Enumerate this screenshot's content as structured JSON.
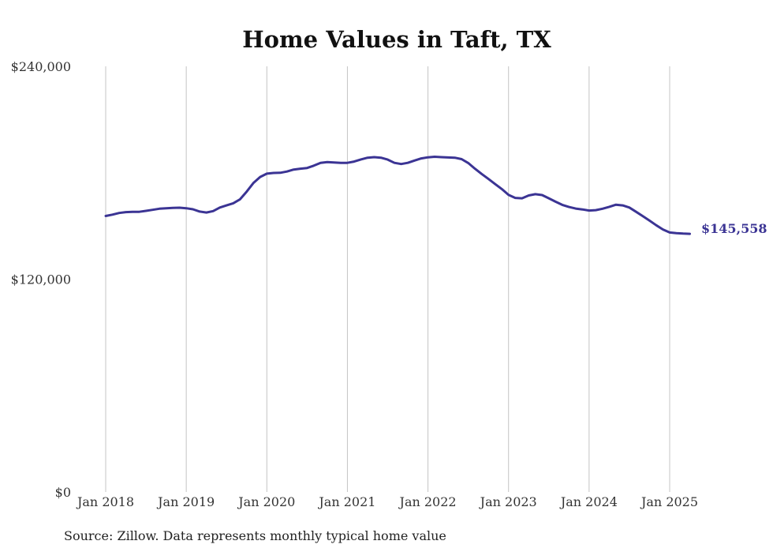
{
  "chart_data": {
    "type": "line",
    "title": "Home Values in Taft, TX",
    "xlabel": "",
    "ylabel": "",
    "ylim": [
      0,
      240000
    ],
    "y_ticks": [
      {
        "value": 0,
        "label": "$0"
      },
      {
        "value": 120000,
        "label": "$120,000"
      },
      {
        "value": 240000,
        "label": "$240,000"
      }
    ],
    "x_ticks": [
      {
        "value": 2018.0,
        "label": "Jan 2018"
      },
      {
        "value": 2019.0,
        "label": "Jan 2019"
      },
      {
        "value": 2020.0,
        "label": "Jan 2020"
      },
      {
        "value": 2021.0,
        "label": "Jan 2021"
      },
      {
        "value": 2022.0,
        "label": "Jan 2022"
      },
      {
        "value": 2023.0,
        "label": "Jan 2023"
      },
      {
        "value": 2024.0,
        "label": "Jan 2024"
      },
      {
        "value": 2025.0,
        "label": "Jan 2025"
      }
    ],
    "grid": "vertical",
    "legend": "none",
    "colors": {
      "line": "#3b3494",
      "grid": "#c4c4c4"
    },
    "end_label": "$145,558",
    "x_unit": "fractional year",
    "series": [
      {
        "values": [
          [
            2018.0,
            155600
          ],
          [
            2018.083,
            156400
          ],
          [
            2018.167,
            157300
          ],
          [
            2018.25,
            157800
          ],
          [
            2018.333,
            158000
          ],
          [
            2018.417,
            158000
          ],
          [
            2018.5,
            158500
          ],
          [
            2018.583,
            159100
          ],
          [
            2018.667,
            159700
          ],
          [
            2018.75,
            160000
          ],
          [
            2018.833,
            160200
          ],
          [
            2018.917,
            160300
          ],
          [
            2019.0,
            160000
          ],
          [
            2019.083,
            159400
          ],
          [
            2019.167,
            158100
          ],
          [
            2019.25,
            157600
          ],
          [
            2019.333,
            158400
          ],
          [
            2019.417,
            160400
          ],
          [
            2019.5,
            161600
          ],
          [
            2019.583,
            162800
          ],
          [
            2019.667,
            165000
          ],
          [
            2019.75,
            169400
          ],
          [
            2019.833,
            174200
          ],
          [
            2019.917,
            177600
          ],
          [
            2020.0,
            179500
          ],
          [
            2020.083,
            179900
          ],
          [
            2020.167,
            180000
          ],
          [
            2020.25,
            180700
          ],
          [
            2020.333,
            181800
          ],
          [
            2020.417,
            182300
          ],
          [
            2020.5,
            182700
          ],
          [
            2020.583,
            184000
          ],
          [
            2020.667,
            185600
          ],
          [
            2020.75,
            186000
          ],
          [
            2020.833,
            185800
          ],
          [
            2020.917,
            185600
          ],
          [
            2021.0,
            185600
          ],
          [
            2021.083,
            186300
          ],
          [
            2021.167,
            187500
          ],
          [
            2021.25,
            188500
          ],
          [
            2021.333,
            188800
          ],
          [
            2021.417,
            188500
          ],
          [
            2021.5,
            187400
          ],
          [
            2021.583,
            185600
          ],
          [
            2021.667,
            184900
          ],
          [
            2021.75,
            185600
          ],
          [
            2021.833,
            186900
          ],
          [
            2021.917,
            188100
          ],
          [
            2022.0,
            188700
          ],
          [
            2022.083,
            189000
          ],
          [
            2022.167,
            188800
          ],
          [
            2022.25,
            188600
          ],
          [
            2022.333,
            188500
          ],
          [
            2022.417,
            187700
          ],
          [
            2022.5,
            185500
          ],
          [
            2022.583,
            182300
          ],
          [
            2022.667,
            179300
          ],
          [
            2022.75,
            176500
          ],
          [
            2022.833,
            173600
          ],
          [
            2022.917,
            170800
          ],
          [
            2023.0,
            167500
          ],
          [
            2023.083,
            165800
          ],
          [
            2023.167,
            165600
          ],
          [
            2023.25,
            167200
          ],
          [
            2023.333,
            167900
          ],
          [
            2023.417,
            167400
          ],
          [
            2023.5,
            165600
          ],
          [
            2023.583,
            163700
          ],
          [
            2023.667,
            161900
          ],
          [
            2023.75,
            160700
          ],
          [
            2023.833,
            159800
          ],
          [
            2023.917,
            159300
          ],
          [
            2024.0,
            158700
          ],
          [
            2024.083,
            158900
          ],
          [
            2024.167,
            159700
          ],
          [
            2024.25,
            160800
          ],
          [
            2024.333,
            162000
          ],
          [
            2024.417,
            161600
          ],
          [
            2024.5,
            160400
          ],
          [
            2024.583,
            158000
          ],
          [
            2024.667,
            155500
          ],
          [
            2024.75,
            153000
          ],
          [
            2024.833,
            150400
          ],
          [
            2024.917,
            148000
          ],
          [
            2025.0,
            146300
          ],
          [
            2025.083,
            145900
          ],
          [
            2025.167,
            145700
          ],
          [
            2025.25,
            145558
          ]
        ]
      }
    ]
  },
  "footer": {
    "source": "Source: Zillow. Data represents monthly typical home value"
  }
}
